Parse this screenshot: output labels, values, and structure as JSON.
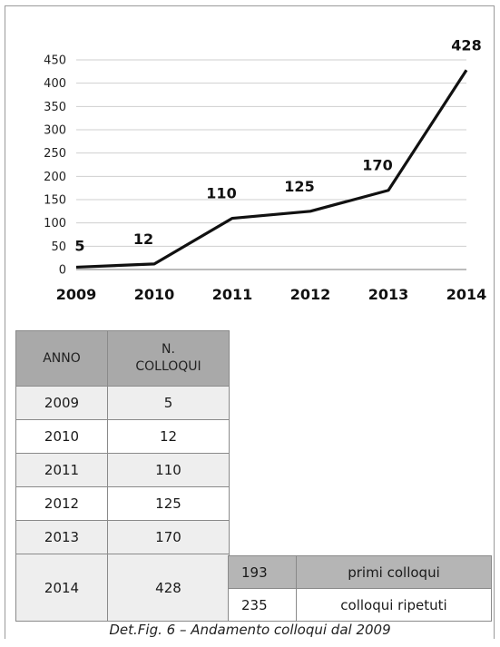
{
  "chart_data": {
    "type": "line",
    "x": [
      "2009",
      "2010",
      "2011",
      "2012",
      "2013",
      "2014"
    ],
    "values": [
      5,
      12,
      110,
      125,
      170,
      428
    ],
    "data_labels": [
      "5",
      "12",
      "110",
      "125",
      "170",
      "428"
    ],
    "y_ticks": [
      "0",
      "50",
      "100",
      "150",
      "200",
      "250",
      "300",
      "350",
      "400",
      "450"
    ],
    "ylim": [
      0,
      450
    ],
    "grid": true,
    "line_color": "#111111"
  },
  "table": {
    "header_anno": "ANNO",
    "header_n": "N.",
    "header_colloqui": "COLLOQUI",
    "rows": [
      {
        "anno": "2009",
        "n": "5"
      },
      {
        "anno": "2010",
        "n": "12"
      },
      {
        "anno": "2011",
        "n": "110"
      },
      {
        "anno": "2012",
        "n": "125"
      },
      {
        "anno": "2013",
        "n": "170"
      },
      {
        "anno": "2014",
        "n": "428"
      }
    ]
  },
  "breakdown": {
    "rows": [
      {
        "num": "193",
        "label": "primi colloqui"
      },
      {
        "num": "235",
        "label": "colloqui ripetuti"
      }
    ]
  },
  "caption": "Det.Fig. 6 – Andamento colloqui dal 2009"
}
